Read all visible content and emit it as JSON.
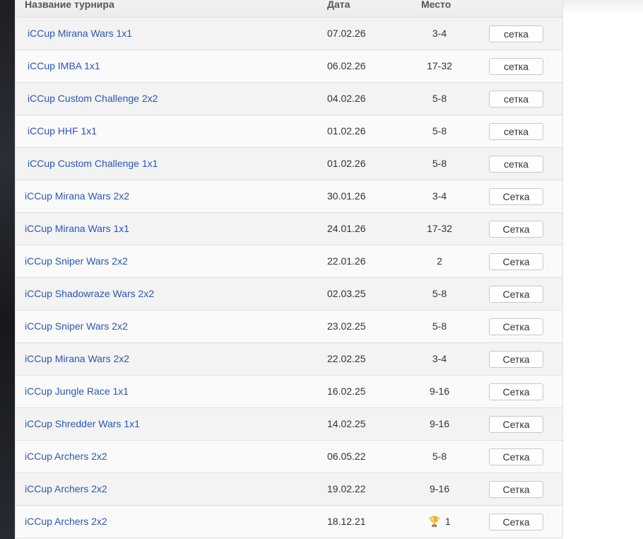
{
  "header": {
    "name": "Название турнира",
    "date": "Дата",
    "place": "Место"
  },
  "rows": [
    {
      "name": "iCCup Mirana Wars 1x1",
      "date": "07.02.26",
      "place": "3-4",
      "button": "сетка"
    },
    {
      "name": "iCCup IMBA 1x1",
      "date": "06.02.26",
      "place": "17-32",
      "button": "сетка"
    },
    {
      "name": "iCCup Custom Challenge 2x2",
      "date": "04.02.26",
      "place": "5-8",
      "button": "сетка"
    },
    {
      "name": "iCCup HHF 1x1",
      "date": "01.02.26",
      "place": "5-8",
      "button": "сетка"
    },
    {
      "name": "iCCup Custom Challenge 1x1",
      "date": "01.02.26",
      "place": "5-8",
      "button": "сетка"
    },
    {
      "name": "iCCup Mirana Wars 2x2",
      "date": "30.01.26",
      "place": "3-4",
      "button": "Сетка"
    },
    {
      "name": "iCCup Mirana Wars 1x1",
      "date": "24.01.26",
      "place": "17-32",
      "button": "Сетка"
    },
    {
      "name": "iCCup Sniper Wars 2x2",
      "date": "22.01.26",
      "place": "2",
      "button": "Сетка"
    },
    {
      "name": "iCCup Shadowraze Wars 2x2",
      "date": "02.03.25",
      "place": "5-8",
      "button": "Сетка"
    },
    {
      "name": "iCCup Sniper Wars 2x2",
      "date": "23.02.25",
      "place": "5-8",
      "button": "Сетка"
    },
    {
      "name": "iCCup Mirana Wars 2x2",
      "date": "22.02.25",
      "place": "3-4",
      "button": "Сетка"
    },
    {
      "name": "iCCup Jungle Race 1x1",
      "date": "16.02.25",
      "place": "9-16",
      "button": "Сетка"
    },
    {
      "name": "iCCup Shredder Wars 1x1",
      "date": "14.02.25",
      "place": "9-16",
      "button": "Сетка"
    },
    {
      "name": "iCCup Archers 2x2",
      "date": "06.05.22",
      "place": "5-8",
      "button": "Сетка"
    },
    {
      "name": "iCCup Archers 2x2",
      "date": "19.02.22",
      "place": "9-16",
      "button": "Сетка"
    },
    {
      "name": "iCCup Archers 2x2",
      "date": "18.12.21",
      "place": "1",
      "button": "Сетка",
      "icon": "trophy-icon"
    }
  ],
  "colors": {
    "link": "#2a56b5",
    "trophy": "#e88a10"
  }
}
